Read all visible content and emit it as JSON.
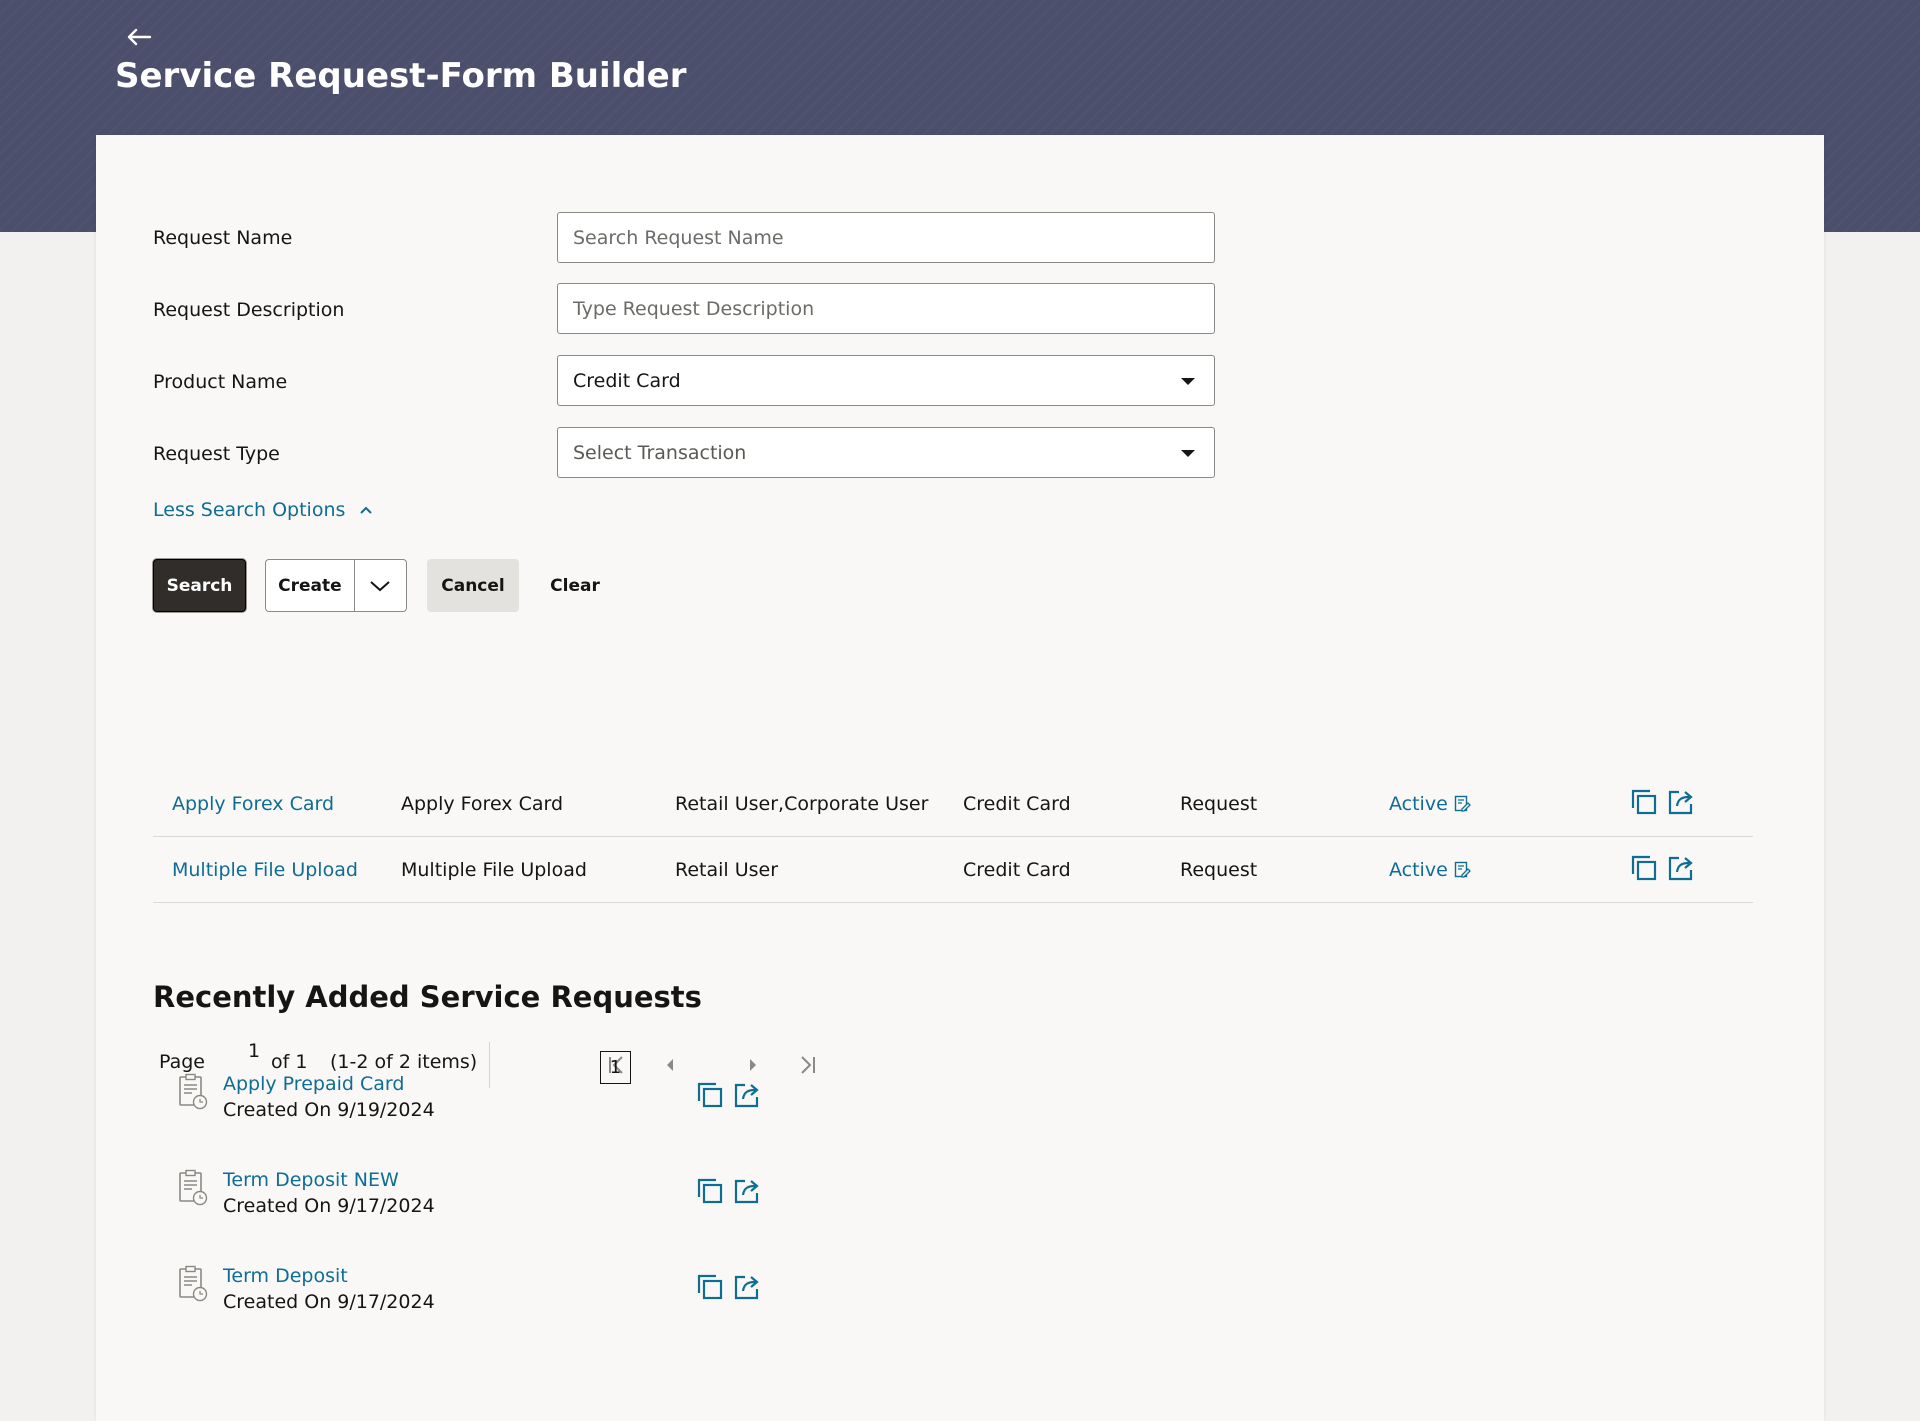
{
  "header": {
    "title": "Service Request-Form Builder"
  },
  "form": {
    "request_name": {
      "label": "Request Name",
      "placeholder": "Search Request Name"
    },
    "request_description": {
      "label": "Request Description",
      "placeholder": "Type Request Description"
    },
    "product_name": {
      "label": "Product Name",
      "value": "Credit Card"
    },
    "request_type": {
      "label": "Request Type",
      "placeholder": "Select Transaction"
    },
    "less_search_options": "Less Search Options"
  },
  "actions": {
    "search": "Search",
    "create": "Create",
    "cancel": "Cancel",
    "clear": "Clear"
  },
  "results": {
    "rows": [
      {
        "name": "Apply Forex Card",
        "description": "Apply Forex Card",
        "users": "Retail User,Corporate User",
        "product": "Credit Card",
        "type": "Request",
        "status": "Active"
      },
      {
        "name": "Multiple File Upload",
        "description": "Multiple File Upload",
        "users": "Retail User",
        "product": "Credit Card",
        "type": "Request",
        "status": "Active"
      }
    ]
  },
  "pagination": {
    "page_label": "Page",
    "page_input": "1",
    "of_label": "of 1",
    "items_label": "(1-2 of 2 items)",
    "current_page": "1"
  },
  "recent": {
    "title": "Recently Added Service Requests",
    "created_on_label": "Created On",
    "items": [
      {
        "name": "Apply Prepaid Card",
        "date": "9/19/2024"
      },
      {
        "name": "Term Deposit NEW",
        "date": "9/17/2024"
      },
      {
        "name": "Term Deposit",
        "date": "9/17/2024"
      }
    ]
  },
  "colors": {
    "banner": "#4b4f6c",
    "link": "#0f6d94",
    "primary_button": "#312d2a",
    "page_bg": "#f2f1ef",
    "card_bg": "#f9f8f6"
  },
  "icons": {
    "back": "arrow-left-icon",
    "chevron_up": "chevron-up-icon",
    "chevron_down": "chevron-down-icon",
    "edit_status": "edit-status-icon",
    "copy": "copy-icon",
    "open": "open-external-icon",
    "document": "document-clock-icon"
  }
}
